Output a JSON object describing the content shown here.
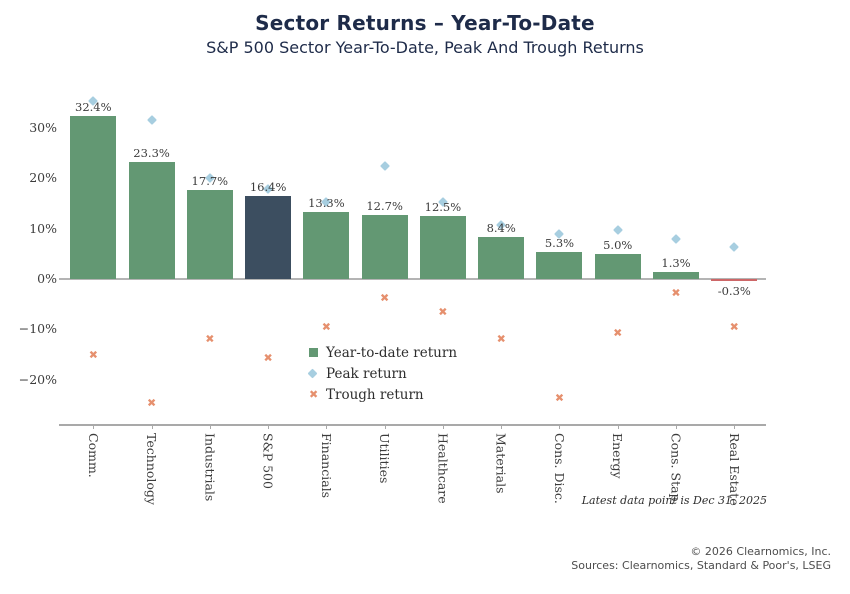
{
  "header": {
    "title": "Sector Returns – Year-To-Date",
    "subtitle": "S&P 500 Sector Year-To-Date, Peak And Trough Returns"
  },
  "chart_data": {
    "type": "bar",
    "categories": [
      "Comm.",
      "Technology",
      "Industrials",
      "S&P 500",
      "Financials",
      "Utilities",
      "Healthcare",
      "Materials",
      "Cons. Disc.",
      "Energy",
      "Cons. Stap.",
      "Real Estate"
    ],
    "series": [
      {
        "name": "Year-to-date return",
        "marker": "square",
        "values": [
          32.4,
          23.3,
          17.7,
          16.4,
          13.3,
          12.7,
          12.5,
          8.4,
          5.3,
          5.0,
          1.3,
          -0.3
        ],
        "labels": [
          "32.4%",
          "23.3%",
          "17.7%",
          "16.4%",
          "13.3%",
          "12.7%",
          "12.5%",
          "8.4%",
          "5.3%",
          "5.0%",
          "1.3%",
          "-0.3%"
        ]
      },
      {
        "name": "Peak return",
        "marker": "diamond",
        "values": [
          35.3,
          31.6,
          20.0,
          17.9,
          15.3,
          22.4,
          15.2,
          10.8,
          8.9,
          9.8,
          7.9,
          6.4
        ]
      },
      {
        "name": "Trough return",
        "marker": "x",
        "values": [
          -15.0,
          -24.6,
          -12.0,
          -15.6,
          -9.5,
          -3.7,
          -6.6,
          -11.9,
          -23.6,
          -10.7,
          -2.8,
          -9.5
        ]
      }
    ],
    "highlight_category": "S&P 500",
    "yticks": [
      {
        "value": 30,
        "label": "30%"
      },
      {
        "value": 20,
        "label": "20%"
      },
      {
        "value": 10,
        "label": "10%"
      },
      {
        "value": 0,
        "label": "0%"
      },
      {
        "value": -10,
        "label": "−10%"
      },
      {
        "value": -20,
        "label": "−20%"
      }
    ],
    "ylim": [
      -27,
      37
    ],
    "grid": "zero-line-only",
    "legend_position": "inside-lower-middle",
    "note": "Latest data point is Dec 31, 2025"
  },
  "colors": {
    "bar_positive": "#639873",
    "bar_highlight": "#3c4e60",
    "bar_negative": "#cd6768",
    "peak_marker": "#a7cee0",
    "trough_marker": "#e6906e",
    "title_text": "#1e2b49",
    "label_text": "#3c3c3c",
    "axis_line": "#a9a9a9"
  },
  "footer": {
    "copyright": "© 2026 Clearnomics, Inc.",
    "sources": "Sources: Clearnomics, Standard & Poor's, LSEG"
  }
}
